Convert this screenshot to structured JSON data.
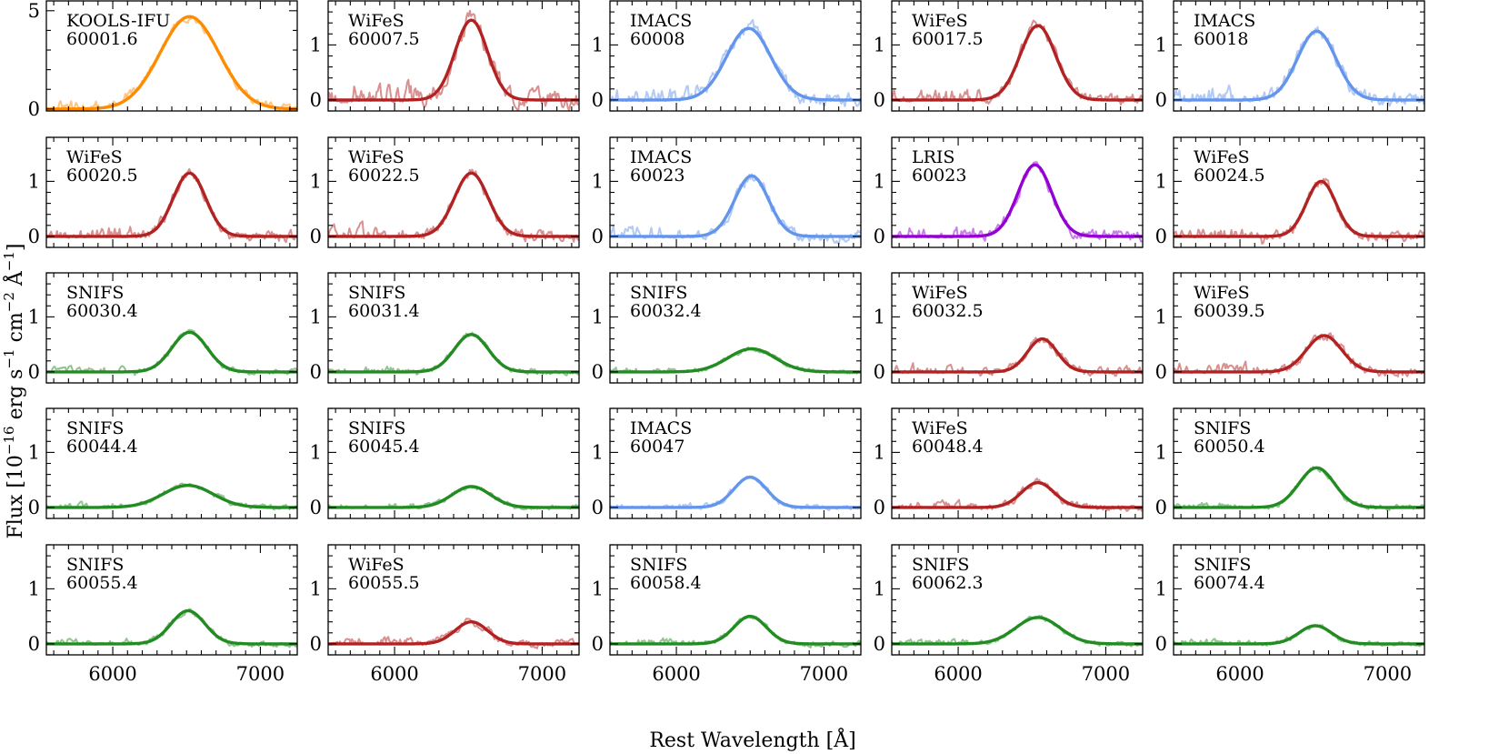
{
  "chart_data": {
    "type": "line",
    "grid": false,
    "layout": {
      "rows": 5,
      "cols": 5,
      "sharex": true,
      "sharey_from_row": 2
    },
    "xlabel": "Rest Wavelength [Å]",
    "ylabel": {
      "main": "Flux [10",
      "exp1": "−16",
      "unit1": " erg s",
      "exp2": "−1",
      "unit2": " cm",
      "exp3": "−2",
      "unit3": " Å",
      "exp4": "−1",
      "close": "]"
    },
    "xlim": [
      5550,
      7250
    ],
    "xticks": [
      6000,
      7000
    ],
    "xtick_labels": [
      "6000",
      "7000"
    ],
    "instrument_colors": {
      "KOOLS-IFU": "#ff8c00",
      "WiFeS": "#b22222",
      "IMACS": "#6495ed",
      "LRIS": "#9400d3",
      "SNIFS": "#228b22"
    },
    "panels": [
      {
        "instrument": "KOOLS-IFU",
        "epoch": "60001.6",
        "ylim": [
          -0.1,
          5.5
        ],
        "yticks": [
          0,
          5
        ],
        "ytick_labels": [
          "0",
          "5"
        ],
        "amp": 4.7,
        "center": 6520,
        "sigma": 200,
        "noise": 0.25
      },
      {
        "instrument": "WiFeS",
        "epoch": "60007.5",
        "ylim": [
          -0.2,
          1.8
        ],
        "yticks": [
          0,
          1
        ],
        "ytick_labels": [
          "0",
          "1"
        ],
        "amp": 1.45,
        "center": 6520,
        "sigma": 110,
        "noise": 0.2
      },
      {
        "instrument": "IMACS",
        "epoch": "60008",
        "ylim": [
          -0.2,
          1.8
        ],
        "yticks": [
          0,
          1
        ],
        "ytick_labels": [
          "0",
          "1"
        ],
        "amp": 1.3,
        "center": 6490,
        "sigma": 150,
        "noise": 0.15
      },
      {
        "instrument": "WiFeS",
        "epoch": "60017.5",
        "ylim": [
          -0.2,
          1.8
        ],
        "yticks": [
          0,
          1
        ],
        "ytick_labels": [
          "0",
          "1"
        ],
        "amp": 1.35,
        "center": 6540,
        "sigma": 120,
        "noise": 0.12
      },
      {
        "instrument": "IMACS",
        "epoch": "60018",
        "ylim": [
          -0.2,
          1.8
        ],
        "yticks": [
          0,
          1
        ],
        "ytick_labels": [
          "0",
          "1"
        ],
        "amp": 1.25,
        "center": 6520,
        "sigma": 130,
        "noise": 0.15
      },
      {
        "instrument": "WiFeS",
        "epoch": "60020.5",
        "ylim": [
          -0.2,
          1.8
        ],
        "yticks": [
          0,
          1
        ],
        "ytick_labels": [
          "0",
          "1"
        ],
        "amp": 1.15,
        "center": 6520,
        "sigma": 110,
        "noise": 0.12
      },
      {
        "instrument": "WiFeS",
        "epoch": "60022.5",
        "ylim": [
          -0.2,
          1.8
        ],
        "yticks": [
          0,
          1
        ],
        "ytick_labels": [
          "0",
          "1"
        ],
        "amp": 1.15,
        "center": 6520,
        "sigma": 115,
        "noise": 0.12
      },
      {
        "instrument": "IMACS",
        "epoch": "60023",
        "ylim": [
          -0.2,
          1.8
        ],
        "yticks": [
          0,
          1
        ],
        "ytick_labels": [
          "0",
          "1"
        ],
        "amp": 1.1,
        "center": 6510,
        "sigma": 115,
        "noise": 0.13
      },
      {
        "instrument": "LRIS",
        "epoch": "60023",
        "ylim": [
          -0.2,
          1.8
        ],
        "yticks": [
          0,
          1
        ],
        "ytick_labels": [
          "0",
          "1"
        ],
        "amp": 1.3,
        "center": 6520,
        "sigma": 115,
        "noise": 0.12
      },
      {
        "instrument": "WiFeS",
        "epoch": "60024.5",
        "ylim": [
          -0.2,
          1.8
        ],
        "yticks": [
          0,
          1
        ],
        "ytick_labels": [
          "0",
          "1"
        ],
        "amp": 1.0,
        "center": 6550,
        "sigma": 100,
        "noise": 0.12
      },
      {
        "instrument": "SNIFS",
        "epoch": "60030.4",
        "ylim": [
          -0.2,
          1.8
        ],
        "yticks": [
          0,
          1
        ],
        "ytick_labels": [
          "0",
          "1"
        ],
        "amp": 0.72,
        "center": 6520,
        "sigma": 120,
        "noise": 0.06
      },
      {
        "instrument": "SNIFS",
        "epoch": "60031.4",
        "ylim": [
          -0.2,
          1.8
        ],
        "yticks": [
          0,
          1
        ],
        "ytick_labels": [
          "0",
          "1"
        ],
        "amp": 0.68,
        "center": 6520,
        "sigma": 115,
        "noise": 0.06
      },
      {
        "instrument": "SNIFS",
        "epoch": "60032.4",
        "ylim": [
          -0.2,
          1.8
        ],
        "yticks": [
          0,
          1
        ],
        "ytick_labels": [
          "0",
          "1"
        ],
        "amp": 0.42,
        "center": 6510,
        "sigma": 160,
        "noise": 0.05
      },
      {
        "instrument": "WiFeS",
        "epoch": "60032.5",
        "ylim": [
          -0.2,
          1.8
        ],
        "yticks": [
          0,
          1
        ],
        "ytick_labels": [
          "0",
          "1"
        ],
        "amp": 0.6,
        "center": 6570,
        "sigma": 100,
        "noise": 0.1
      },
      {
        "instrument": "WiFeS",
        "epoch": "60039.5",
        "ylim": [
          -0.2,
          1.8
        ],
        "yticks": [
          0,
          1
        ],
        "ytick_labels": [
          "0",
          "1"
        ],
        "amp": 0.66,
        "center": 6570,
        "sigma": 120,
        "noise": 0.1
      },
      {
        "instrument": "SNIFS",
        "epoch": "60044.4",
        "ylim": [
          -0.2,
          1.8
        ],
        "yticks": [
          0,
          1
        ],
        "ytick_labels": [
          "0",
          "1"
        ],
        "amp": 0.4,
        "center": 6510,
        "sigma": 170,
        "noise": 0.05
      },
      {
        "instrument": "SNIFS",
        "epoch": "60045.4",
        "ylim": [
          -0.2,
          1.8
        ],
        "yticks": [
          0,
          1
        ],
        "ytick_labels": [
          "0",
          "1"
        ],
        "amp": 0.38,
        "center": 6520,
        "sigma": 130,
        "noise": 0.05
      },
      {
        "instrument": "IMACS",
        "epoch": "60047",
        "ylim": [
          -0.2,
          1.8
        ],
        "yticks": [
          0,
          1
        ],
        "ytick_labels": [
          "0",
          "1"
        ],
        "amp": 0.55,
        "center": 6500,
        "sigma": 110,
        "noise": 0.06
      },
      {
        "instrument": "WiFeS",
        "epoch": "60048.4",
        "ylim": [
          -0.2,
          1.8
        ],
        "yticks": [
          0,
          1
        ],
        "ytick_labels": [
          "0",
          "1"
        ],
        "amp": 0.45,
        "center": 6540,
        "sigma": 110,
        "noise": 0.08
      },
      {
        "instrument": "SNIFS",
        "epoch": "60050.4",
        "ylim": [
          -0.2,
          1.8
        ],
        "yticks": [
          0,
          1
        ],
        "ytick_labels": [
          "0",
          "1"
        ],
        "amp": 0.72,
        "center": 6520,
        "sigma": 120,
        "noise": 0.06
      },
      {
        "instrument": "SNIFS",
        "epoch": "60055.4",
        "ylim": [
          -0.2,
          1.8
        ],
        "yticks": [
          0,
          1
        ],
        "ytick_labels": [
          "0",
          "1"
        ],
        "amp": 0.6,
        "center": 6510,
        "sigma": 115,
        "noise": 0.06
      },
      {
        "instrument": "WiFeS",
        "epoch": "60055.5",
        "ylim": [
          -0.2,
          1.8
        ],
        "yticks": [
          0,
          1
        ],
        "ytick_labels": [
          "0",
          "1"
        ],
        "amp": 0.4,
        "center": 6520,
        "sigma": 110,
        "noise": 0.08
      },
      {
        "instrument": "SNIFS",
        "epoch": "60058.4",
        "ylim": [
          -0.2,
          1.8
        ],
        "yticks": [
          0,
          1
        ],
        "ytick_labels": [
          "0",
          "1"
        ],
        "amp": 0.5,
        "center": 6500,
        "sigma": 110,
        "noise": 0.06
      },
      {
        "instrument": "SNIFS",
        "epoch": "60062.3",
        "ylim": [
          -0.2,
          1.8
        ],
        "yticks": [
          0,
          1
        ],
        "ytick_labels": [
          "0",
          "1"
        ],
        "amp": 0.48,
        "center": 6540,
        "sigma": 150,
        "noise": 0.05
      },
      {
        "instrument": "SNIFS",
        "epoch": "60074.4",
        "ylim": [
          -0.2,
          1.8
        ],
        "yticks": [
          0,
          1
        ],
        "ytick_labels": [
          "0",
          "1"
        ],
        "amp": 0.33,
        "center": 6510,
        "sigma": 110,
        "noise": 0.05
      }
    ]
  }
}
